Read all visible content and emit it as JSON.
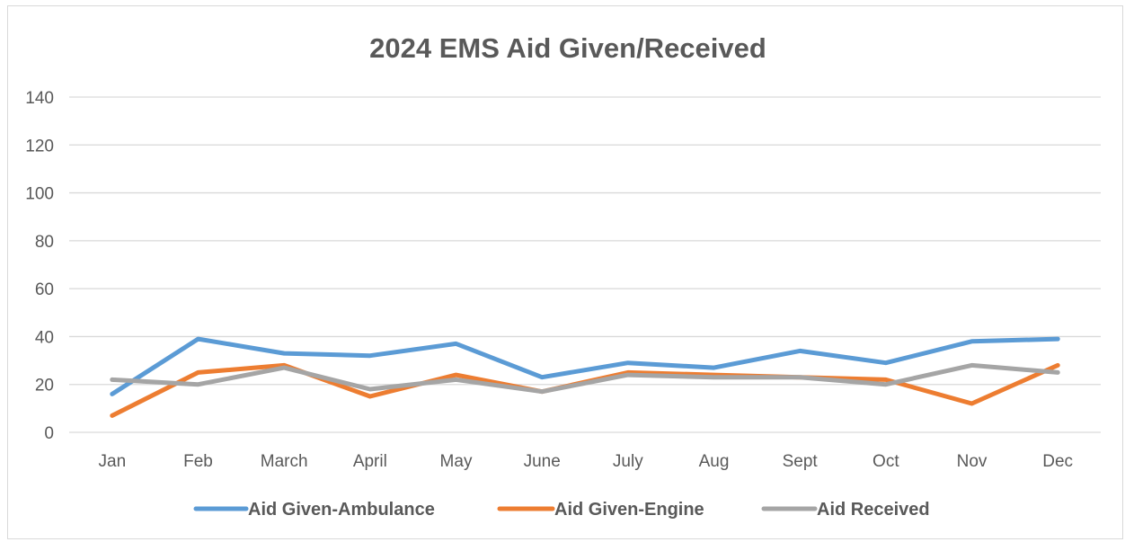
{
  "chart_data": {
    "type": "line",
    "title": "2024 EMS Aid Given/Received",
    "xlabel": "",
    "ylabel": "",
    "categories": [
      "Jan",
      "Feb",
      "March",
      "April",
      "May",
      "June",
      "July",
      "Aug",
      "Sept",
      "Oct",
      "Nov",
      "Dec"
    ],
    "ylim": [
      0,
      140
    ],
    "yticks": [
      0,
      20,
      40,
      60,
      80,
      100,
      120,
      140
    ],
    "grid": true,
    "legend_position": "bottom",
    "series": [
      {
        "name": "Aid Given-Ambulance",
        "color": "#5b9bd5",
        "values": [
          16,
          39,
          33,
          32,
          37,
          23,
          29,
          27,
          34,
          29,
          38,
          39
        ]
      },
      {
        "name": "Aid Given-Engine",
        "color": "#ed7d31",
        "values": [
          7,
          25,
          28,
          15,
          24,
          17,
          25,
          24,
          23,
          22,
          12,
          28
        ]
      },
      {
        "name": "Aid Received",
        "color": "#a5a5a5",
        "values": [
          22,
          20,
          27,
          18,
          22,
          17,
          24,
          23,
          23,
          20,
          28,
          25
        ]
      }
    ]
  }
}
